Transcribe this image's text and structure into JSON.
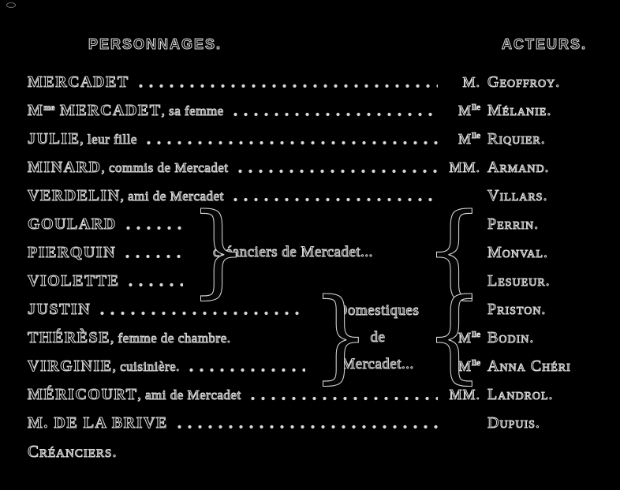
{
  "colors": {
    "background": "#000000",
    "ink": "#d9d9d9"
  },
  "headers": {
    "left": "PERSONNAGES.",
    "right": "ACTEURS."
  },
  "glyphs": {
    "close_brace": "}",
    "open_brace": "{"
  },
  "rows": [
    {
      "char_main": "",
      "char_sup": "",
      "character": "MERCADET",
      "description": "",
      "actor_prefix": "M.",
      "actor_prefix_sup": "",
      "actor": "Geoffroy."
    },
    {
      "char_main": "M",
      "char_sup": "me",
      "character": " MERCADET",
      "description": ", sa femme",
      "actor_prefix": "M",
      "actor_prefix_sup": "lle",
      "actor": "Mélanie."
    },
    {
      "char_main": "",
      "char_sup": "",
      "character": "JULIE",
      "description": ", leur fille",
      "actor_prefix": "M",
      "actor_prefix_sup": "lle",
      "actor": "Riquier."
    },
    {
      "char_main": "",
      "char_sup": "",
      "character": "MINARD",
      "description": ", commis de Mercadet",
      "actor_prefix": "MM.",
      "actor_prefix_sup": "",
      "actor": "Armand."
    },
    {
      "char_main": "",
      "char_sup": "",
      "character": "VERDELIN",
      "description": ", ami de Mercadet",
      "actor_prefix": "",
      "actor_prefix_sup": "",
      "actor": "Villars."
    }
  ],
  "group_creanciers": {
    "label": "créanciers de Mercadet...",
    "members": [
      {
        "character": "GOULARD",
        "description": "",
        "leader": true
      },
      {
        "character": "PIERQUIN",
        "description": "",
        "leader": true
      },
      {
        "character": "VIOLETTE",
        "description": "",
        "leader": true
      }
    ],
    "actors": [
      {
        "prefix": "",
        "prefix_sup": "",
        "name": "Perrin."
      },
      {
        "prefix": "",
        "prefix_sup": "",
        "name": "Monval."
      },
      {
        "prefix": "",
        "prefix_sup": "",
        "name": "Lesueur."
      }
    ]
  },
  "group_domestiques": {
    "label_lines": [
      "Domestiques",
      "de",
      "Mercadet..."
    ],
    "members": [
      {
        "character": "JUSTIN",
        "description": "",
        "leader": true
      },
      {
        "character": "THÉRÈSE",
        "description": ", femme de chambre.",
        "leader": false
      },
      {
        "character": "VIRGINIE",
        "description": ", cuisinière.",
        "leader": true
      }
    ],
    "actors": [
      {
        "prefix": "",
        "prefix_sup": "",
        "name": "Priston."
      },
      {
        "prefix": "M",
        "prefix_sup": "lle",
        "name": "Bodin."
      },
      {
        "prefix": "M",
        "prefix_sup": "lle",
        "name": "Anna Chéri"
      }
    ]
  },
  "bottom_rows": [
    {
      "char_main": "",
      "char_sup": "",
      "character": "MÉRICOURT",
      "description": ", ami de Mercadet",
      "actor_prefix": "MM.",
      "actor_prefix_sup": "",
      "actor": "Landrol."
    },
    {
      "char_main": "",
      "char_sup": "",
      "character": "M. DE LA BRIVE",
      "description": "",
      "actor_prefix": "",
      "actor_prefix_sup": "",
      "actor": "Dupuis."
    }
  ],
  "footer": {
    "label": "Créanciers."
  }
}
